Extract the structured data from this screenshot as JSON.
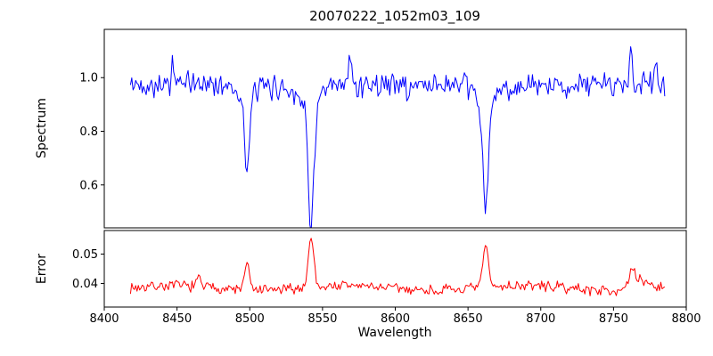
{
  "figure": {
    "background": "#ffffff",
    "text_color": "#000000"
  },
  "chart_data": [
    {
      "type": "line",
      "title": "20070222_1052m03_109",
      "xlabel": "",
      "ylabel": "Spectrum",
      "line_color": "#0000ff",
      "xlim": [
        8400,
        8800
      ],
      "ylim": [
        0.44,
        1.18
      ],
      "yticks": [
        "0.6",
        "0.8",
        "1.0"
      ],
      "grid": false,
      "legend": false,
      "series": {
        "seed": 42,
        "x_start": 8418,
        "x_end": 8786,
        "step": 0.9,
        "baseline": 0.97,
        "noise": 0.055,
        "wave": {
          "amp": 0.008,
          "period": 150
        },
        "dips": [
          {
            "center": 8498.0,
            "amp": 0.3,
            "sigma": 1.6
          },
          {
            "center": 8498.0,
            "amp": 0.04,
            "sigma": 5.0
          },
          {
            "center": 8542.1,
            "amp": 0.44,
            "sigma": 2.0
          },
          {
            "center": 8542.1,
            "amp": 0.06,
            "sigma": 7.0
          },
          {
            "center": 8662.1,
            "amp": 0.4,
            "sigma": 1.9
          },
          {
            "center": 8662.1,
            "amp": 0.06,
            "sigma": 6.0
          },
          {
            "center": 8609.0,
            "amp": 0.06,
            "sigma": 0.9
          }
        ],
        "peaks": [
          {
            "center": 8447.0,
            "amp": 0.08,
            "sigma": 0.8
          },
          {
            "center": 8569.0,
            "amp": 0.12,
            "sigma": 0.9
          },
          {
            "center": 8762.0,
            "amp": 0.14,
            "sigma": 0.8
          },
          {
            "center": 8779.0,
            "amp": 0.09,
            "sigma": 0.8
          }
        ]
      }
    },
    {
      "type": "line",
      "xlabel": "Wavelength",
      "ylabel": "Error",
      "line_color": "#ff0000",
      "xlim": [
        8400,
        8800
      ],
      "ylim": [
        0.032,
        0.058
      ],
      "yticks": [
        "0.04",
        "0.05"
      ],
      "xticks": [
        "8400",
        "8450",
        "8500",
        "8550",
        "8600",
        "8650",
        "8700",
        "8750",
        "8800"
      ],
      "grid": false,
      "legend": false,
      "series": {
        "seed": 7,
        "x_start": 8418,
        "x_end": 8786,
        "step": 0.9,
        "baseline": 0.0385,
        "noise": 0.0022,
        "wave": {
          "amp": 0.0008,
          "period": 120
        },
        "peaks": [
          {
            "center": 8498.0,
            "amp": 0.009,
            "sigma": 1.6
          },
          {
            "center": 8542.1,
            "amp": 0.017,
            "sigma": 1.9
          },
          {
            "center": 8662.1,
            "amp": 0.014,
            "sigma": 1.9
          },
          {
            "center": 8465.0,
            "amp": 0.003,
            "sigma": 1.2
          },
          {
            "center": 8763.0,
            "amp": 0.005,
            "sigma": 1.5
          },
          {
            "center": 8768.0,
            "amp": 0.003,
            "sigma": 6.0
          }
        ]
      }
    }
  ]
}
